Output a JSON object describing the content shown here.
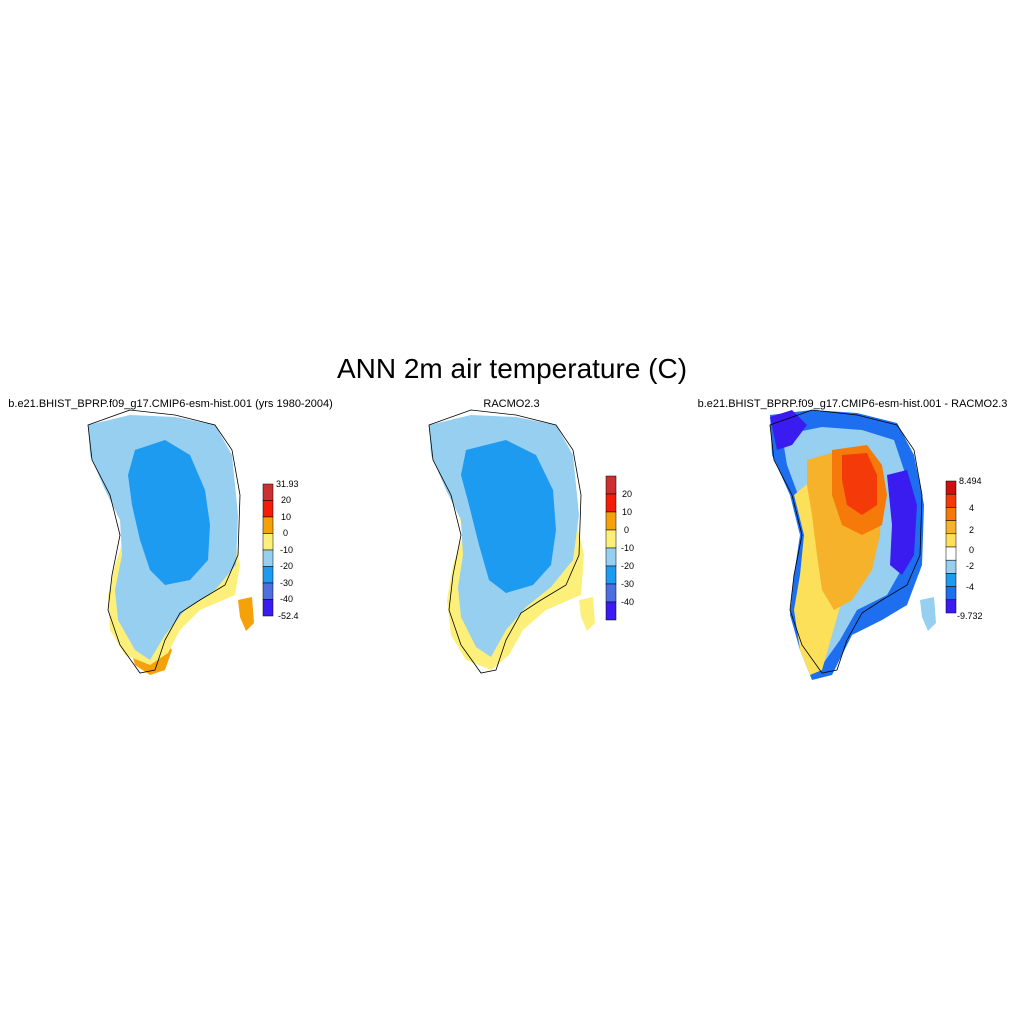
{
  "figure": {
    "title": "ANN 2m air temperature (C)"
  },
  "colors": {
    "abs_scale": [
      "#3b1cf0",
      "#4d6fe0",
      "#1d9bf0",
      "#96cff0",
      "#fdf07a",
      "#f5a20a",
      "#f51d0a",
      "#cc3030"
    ],
    "diff_scale": [
      "#3b1cf0",
      "#1d6ff0",
      "#1d9bf0",
      "#96cff0",
      "#fefefe",
      "#fde05a",
      "#f5b22a",
      "#f57a0a",
      "#f53a0a",
      "#cc1010"
    ]
  },
  "panels": [
    {
      "title": "b.e21.BHIST_BPRP.f09_g17.CMIP6-esm-hist.001 (yrs 1980-2004)",
      "colorbar_labels": [
        "31.93",
        "20",
        "10",
        "0",
        "-10",
        "-20",
        "-30",
        "-40",
        "-52.4"
      ]
    },
    {
      "title": "RACMO2.3",
      "colorbar_labels": [
        "20",
        "10",
        "0",
        "-10",
        "-20",
        "-30",
        "-40"
      ]
    },
    {
      "title": "b.e21.BHIST_BPRP.f09_g17.CMIP6-esm-hist.001 - RACMO2.3",
      "colorbar_labels": [
        "8.494",
        "4",
        "2",
        "0",
        "-2",
        "-4",
        "-9.732"
      ]
    }
  ]
}
